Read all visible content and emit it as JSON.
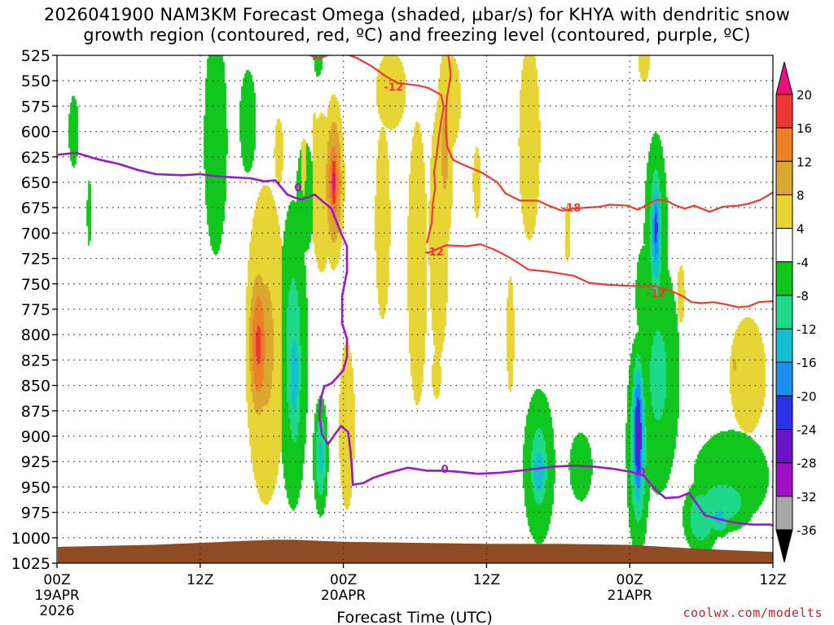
{
  "title": {
    "line1": "2026041900 NAM3KM Forecast Omega (shaded, µbar/s) for KHYA with dendritic snow",
    "line2": "growth region (contoured, red, ºC) and freezing level (contoured, purple, ºC)"
  },
  "credit": "coolwx.com/modelts",
  "colors": {
    "temp_contour": "#ee3a32",
    "freezing_contour": "#9a19c8",
    "ground": "#8f4b24"
  },
  "chart_data": {
    "type": "heatmap",
    "xlabel": "Forecast Time (UTC)",
    "ylabel": "Pressure (hPa)",
    "x_range_hours": [
      0,
      60
    ],
    "y_range_hpa": [
      1025,
      525
    ],
    "x_ticks": [
      {
        "hour": 0,
        "label": "00Z",
        "date": "19APR",
        "year": "2026"
      },
      {
        "hour": 12,
        "label": "12Z",
        "date": "",
        "year": ""
      },
      {
        "hour": 24,
        "label": "00Z",
        "date": "20APR",
        "year": ""
      },
      {
        "hour": 36,
        "label": "12Z",
        "date": "",
        "year": ""
      },
      {
        "hour": 48,
        "label": "00Z",
        "date": "21APR",
        "year": ""
      },
      {
        "hour": 60,
        "label": "12Z",
        "date": "",
        "year": ""
      }
    ],
    "y_ticks": [
      525,
      550,
      575,
      600,
      625,
      650,
      675,
      700,
      725,
      750,
      775,
      800,
      825,
      850,
      875,
      900,
      925,
      950,
      975,
      1000,
      1025
    ],
    "colorbar": {
      "unit": "µbar/s",
      "labels": [
        "20",
        "16",
        "12",
        "8",
        "4",
        "-4",
        "-8",
        "-12",
        "-16",
        "-20",
        "-24",
        "-28",
        "-32",
        "-36"
      ],
      "bins": [
        {
          "from": 20,
          "to": null,
          "color": "#e8127a"
        },
        {
          "from": 16,
          "to": 20,
          "color": "#f03535"
        },
        {
          "from": 12,
          "to": 16,
          "color": "#ec8126"
        },
        {
          "from": 8,
          "to": 12,
          "color": "#dca72f"
        },
        {
          "from": 4,
          "to": 8,
          "color": "#e6d535"
        },
        {
          "from": -4,
          "to": 4,
          "color": "#ffffff"
        },
        {
          "from": -8,
          "to": -4,
          "color": "#11c61c"
        },
        {
          "from": -12,
          "to": -8,
          "color": "#1ed98a"
        },
        {
          "from": -16,
          "to": -12,
          "color": "#15bfd3"
        },
        {
          "from": -20,
          "to": -16,
          "color": "#1a8ff0"
        },
        {
          "from": -24,
          "to": -20,
          "color": "#2c32e6"
        },
        {
          "from": -28,
          "to": -24,
          "color": "#6c14c8"
        },
        {
          "from": -32,
          "to": -28,
          "color": "#a20fc8"
        },
        {
          "from": -36,
          "to": -32,
          "color": "#a7a7a7"
        },
        {
          "from": null,
          "to": -36,
          "color": "#000000"
        }
      ]
    },
    "omega_features": [
      {
        "h": 2.7,
        "p": 680,
        "rh": 0.4,
        "rp": 70,
        "v": -5
      },
      {
        "h": 1.4,
        "p": 600,
        "rh": 0.9,
        "rp": 75,
        "v": -5
      },
      {
        "h": 13.3,
        "p": 610,
        "rh": 1.3,
        "rp": 150,
        "v": -7
      },
      {
        "h": 16.0,
        "p": 590,
        "rh": 1.1,
        "rp": 80,
        "v": -6
      },
      {
        "h": 20.8,
        "p": 665,
        "rh": 1.2,
        "rp": 85,
        "v": -6
      },
      {
        "h": 17.5,
        "p": 810,
        "rh": 1.9,
        "rp": 175,
        "v": 9
      },
      {
        "h": 16.9,
        "p": 810,
        "rh": 0.9,
        "rp": 80,
        "v": 17
      },
      {
        "h": 18.6,
        "p": 620,
        "rh": 0.8,
        "rp": 70,
        "v": 5
      },
      {
        "h": 19.8,
        "p": 820,
        "rh": 1.3,
        "rp": 160,
        "v": -10
      },
      {
        "h": 19.9,
        "p": 840,
        "rh": 0.7,
        "rp": 90,
        "v": -14
      },
      {
        "h": 20.7,
        "p": 655,
        "rh": 0.7,
        "rp": 75,
        "v": 6
      },
      {
        "h": 22.2,
        "p": 660,
        "rh": 1.2,
        "rp": 105,
        "v": 7
      },
      {
        "h": 23.2,
        "p": 650,
        "rh": 0.8,
        "rp": 75,
        "v": 15
      },
      {
        "h": 23.2,
        "p": 650,
        "rh": 0.35,
        "rp": 40,
        "v": 22
      },
      {
        "h": 21.6,
        "p": 600,
        "rh": 0.5,
        "rp": 40,
        "v": 5
      },
      {
        "h": 21.9,
        "p": 515,
        "rh": 0.5,
        "rp": 35,
        "v": -9
      },
      {
        "h": 22.1,
        "p": 920,
        "rh": 0.6,
        "rp": 55,
        "v": -13
      },
      {
        "h": 24.3,
        "p": 890,
        "rh": 0.8,
        "rp": 100,
        "v": 8
      },
      {
        "h": 27.3,
        "p": 690,
        "rh": 1.0,
        "rp": 150,
        "v": 6
      },
      {
        "h": 28.0,
        "p": 560,
        "rh": 2.0,
        "rp": 60,
        "v": 6
      },
      {
        "h": 30.2,
        "p": 730,
        "rh": 1.3,
        "rp": 220,
        "v": 6
      },
      {
        "h": 32.0,
        "p": 700,
        "rh": 1.0,
        "rp": 150,
        "v": 8
      },
      {
        "h": 32.5,
        "p": 620,
        "rh": 0.8,
        "rp": 110,
        "v": 9
      },
      {
        "h": 33.1,
        "p": 570,
        "rh": 1.0,
        "rp": 60,
        "v": 7
      },
      {
        "h": 31.8,
        "p": 840,
        "rh": 0.8,
        "rp": 50,
        "v": 5
      },
      {
        "h": 35.2,
        "p": 650,
        "rh": 0.7,
        "rp": 75,
        "v": 5
      },
      {
        "h": 38.0,
        "p": 800,
        "rh": 0.7,
        "rp": 120,
        "v": 5
      },
      {
        "h": 39.6,
        "p": 610,
        "rh": 1.2,
        "rp": 130,
        "v": 7
      },
      {
        "h": 40.4,
        "p": 930,
        "rh": 1.4,
        "rp": 80,
        "v": -10
      },
      {
        "h": 40.4,
        "p": 935,
        "rh": 0.8,
        "rp": 40,
        "v": -15
      },
      {
        "h": 42.8,
        "p": 700,
        "rh": 0.5,
        "rp": 60,
        "v": 5
      },
      {
        "h": 43.9,
        "p": 930,
        "rh": 1.3,
        "rp": 45,
        "v": -7
      },
      {
        "h": 49.2,
        "p": 530,
        "rh": 1.0,
        "rp": 45,
        "v": 5
      },
      {
        "h": 49.2,
        "p": 760,
        "rh": 1.1,
        "rp": 75,
        "v": -6
      },
      {
        "h": 50.4,
        "p": 840,
        "rh": 2.0,
        "rp": 130,
        "v": -9
      },
      {
        "h": 48.8,
        "p": 900,
        "rh": 1.2,
        "rp": 110,
        "v": -9
      },
      {
        "h": 48.7,
        "p": 910,
        "rh": 0.9,
        "rp": 100,
        "v": -14
      },
      {
        "h": 48.7,
        "p": 900,
        "rh": 0.5,
        "rp": 75,
        "v": -26
      },
      {
        "h": 50.2,
        "p": 700,
        "rh": 1.1,
        "rp": 110,
        "v": -9
      },
      {
        "h": 50.2,
        "p": 700,
        "rh": 0.55,
        "rp": 70,
        "v": -18
      },
      {
        "h": 50.2,
        "p": 695,
        "rh": 0.3,
        "rp": 40,
        "v": -23
      },
      {
        "h": 52.3,
        "p": 760,
        "rh": 0.7,
        "rp": 60,
        "v": 5
      },
      {
        "h": 56.5,
        "p": 940,
        "rh": 3.8,
        "rp": 55,
        "v": -8
      },
      {
        "h": 55.8,
        "p": 965,
        "rh": 2.8,
        "rp": 30,
        "v": -11
      },
      {
        "h": 54.0,
        "p": 980,
        "rh": 1.5,
        "rp": 35,
        "v": -12
      },
      {
        "h": 55.5,
        "p": 980,
        "rh": 1.0,
        "rp": 18,
        "v": -14
      },
      {
        "h": 57.9,
        "p": 840,
        "rh": 2.4,
        "rp": 90,
        "v": 6
      },
      {
        "h": 56.8,
        "p": 830,
        "rh": 0.3,
        "rp": 20,
        "v": 9
      }
    ],
    "temp_contours": [
      {
        "label": "-12",
        "points": [
          [
            18.6,
            524
          ],
          [
            20.4,
            522
          ],
          [
            22.0,
            528
          ],
          [
            23.6,
            521
          ],
          [
            25.2,
            528
          ],
          [
            26.4,
            536
          ],
          [
            27.6,
            546
          ],
          [
            28.5,
            552
          ],
          [
            30.4,
            555
          ],
          [
            31.1,
            557
          ],
          [
            32.2,
            564
          ],
          [
            32.4,
            576
          ],
          [
            32.2,
            590
          ],
          [
            32.0,
            605
          ],
          [
            31.8,
            625
          ],
          [
            31.6,
            640
          ],
          [
            31.7,
            655
          ],
          [
            31.5,
            670
          ],
          [
            31.4,
            690
          ],
          [
            31.0,
            710
          ]
        ]
      },
      {
        "label": "-12",
        "points": [
          [
            31.0,
            720
          ],
          [
            32.6,
            712
          ],
          [
            34.3,
            713
          ],
          [
            35.5,
            711
          ],
          [
            36.6,
            716
          ],
          [
            37.3,
            720
          ],
          [
            38.2,
            726
          ],
          [
            39.5,
            736
          ],
          [
            41.2,
            738
          ],
          [
            43.3,
            742
          ],
          [
            44.6,
            749
          ],
          [
            46.2,
            751
          ],
          [
            48.0,
            752
          ],
          [
            50.0,
            752
          ],
          [
            51.5,
            757
          ],
          [
            52.4,
            762
          ],
          [
            53.2,
            768
          ],
          [
            54.0,
            769
          ],
          [
            55.0,
            768
          ],
          [
            56.0,
            770
          ],
          [
            57.1,
            773
          ],
          [
            58.0,
            772
          ],
          [
            58.8,
            768
          ],
          [
            60.0,
            767
          ]
        ]
      },
      {
        "label": "-18",
        "points": [
          [
            32.8,
            525
          ],
          [
            33.0,
            545
          ],
          [
            32.7,
            565
          ],
          [
            32.6,
            580
          ],
          [
            32.6,
            600
          ],
          [
            32.7,
            615
          ],
          [
            33.2,
            628
          ],
          [
            34.1,
            633
          ],
          [
            35.7,
            641
          ],
          [
            36.9,
            650
          ],
          [
            37.6,
            661
          ],
          [
            38.8,
            668
          ],
          [
            40.3,
            668
          ],
          [
            41.2,
            673
          ],
          [
            42.3,
            678
          ],
          [
            43.2,
            676
          ],
          [
            44.3,
            675
          ],
          [
            45.5,
            674
          ],
          [
            46.3,
            672
          ],
          [
            47.8,
            673
          ],
          [
            48.7,
            677
          ],
          [
            49.6,
            671
          ],
          [
            50.3,
            667
          ],
          [
            51.1,
            668
          ],
          [
            51.7,
            672
          ],
          [
            52.6,
            676
          ],
          [
            53.4,
            673
          ],
          [
            54.7,
            679
          ],
          [
            55.8,
            674
          ],
          [
            57.1,
            673
          ],
          [
            58.0,
            671
          ],
          [
            59.0,
            667
          ],
          [
            60.0,
            660
          ]
        ]
      }
    ],
    "temp_label_points": [
      {
        "label": "-12",
        "h": 28.2,
        "p": 556
      },
      {
        "label": "-12",
        "h": 31.6,
        "p": 718
      },
      {
        "label": "-18",
        "h": 43.1,
        "p": 675
      },
      {
        "label": "-12",
        "h": 50.2,
        "p": 759
      }
    ],
    "freezing_contour": {
      "label": "0",
      "points": [
        [
          0,
          623
        ],
        [
          1.6,
          621
        ],
        [
          3.3,
          627
        ],
        [
          5.2,
          632
        ],
        [
          6.8,
          638
        ],
        [
          8.3,
          642
        ],
        [
          10.5,
          643
        ],
        [
          12.0,
          642
        ],
        [
          13.3,
          644
        ],
        [
          14.7,
          645
        ],
        [
          16.2,
          646
        ],
        [
          17.4,
          649
        ],
        [
          18.3,
          648
        ],
        [
          19.3,
          662
        ],
        [
          19.9,
          665
        ],
        [
          20.5,
          667
        ],
        [
          21.0,
          665
        ],
        [
          21.6,
          662
        ],
        [
          22.2,
          668
        ],
        [
          22.6,
          672
        ],
        [
          23.0,
          676
        ],
        [
          23.4,
          688
        ],
        [
          23.8,
          700
        ],
        [
          24.3,
          713
        ],
        [
          24.3,
          738
        ],
        [
          23.9,
          762
        ],
        [
          23.9,
          789
        ],
        [
          24.3,
          804
        ],
        [
          24.3,
          822
        ],
        [
          24.0,
          835
        ],
        [
          23.4,
          843
        ],
        [
          23.0,
          848
        ],
        [
          22.4,
          851
        ],
        [
          22.1,
          863
        ],
        [
          22.0,
          880
        ],
        [
          22.2,
          898
        ],
        [
          22.7,
          908
        ],
        [
          23.3,
          898
        ],
        [
          23.8,
          890
        ],
        [
          24.4,
          896
        ],
        [
          24.6,
          915
        ],
        [
          24.7,
          930
        ],
        [
          24.8,
          948
        ],
        [
          25.7,
          946
        ],
        [
          26.5,
          941
        ],
        [
          27.8,
          936
        ],
        [
          29.4,
          931
        ],
        [
          31.0,
          934
        ],
        [
          32.4,
          934
        ],
        [
          33.6,
          935
        ],
        [
          35.3,
          937
        ],
        [
          37.1,
          936
        ],
        [
          38.7,
          934
        ],
        [
          40.2,
          932
        ],
        [
          41.5,
          930
        ],
        [
          43.3,
          929
        ],
        [
          45.0,
          930
        ],
        [
          46.5,
          932
        ],
        [
          48.1,
          935
        ],
        [
          49.2,
          939
        ],
        [
          50.0,
          951
        ],
        [
          51.0,
          961
        ],
        [
          52.1,
          960
        ],
        [
          53.0,
          956
        ],
        [
          54.3,
          978
        ],
        [
          55.6,
          982
        ],
        [
          56.8,
          985
        ],
        [
          58.2,
          987
        ],
        [
          59.8,
          987
        ],
        [
          60.0,
          988
        ]
      ]
    },
    "freezing_label_points": [
      {
        "label": "0",
        "h": 20.2,
        "p": 655
      },
      {
        "label": "0",
        "h": 32.5,
        "p": 932
      },
      {
        "label": "0",
        "h": 49.0,
        "p": 935
      }
    ],
    "surface_pressure_profile": [
      [
        0,
        1009
      ],
      [
        8,
        1007
      ],
      [
        14,
        1004
      ],
      [
        18,
        1002
      ],
      [
        20,
        1002
      ],
      [
        24,
        1004
      ],
      [
        30,
        1005
      ],
      [
        36,
        1006
      ],
      [
        42,
        1006
      ],
      [
        48,
        1007
      ],
      [
        54,
        1011
      ],
      [
        60,
        1014
      ]
    ]
  }
}
